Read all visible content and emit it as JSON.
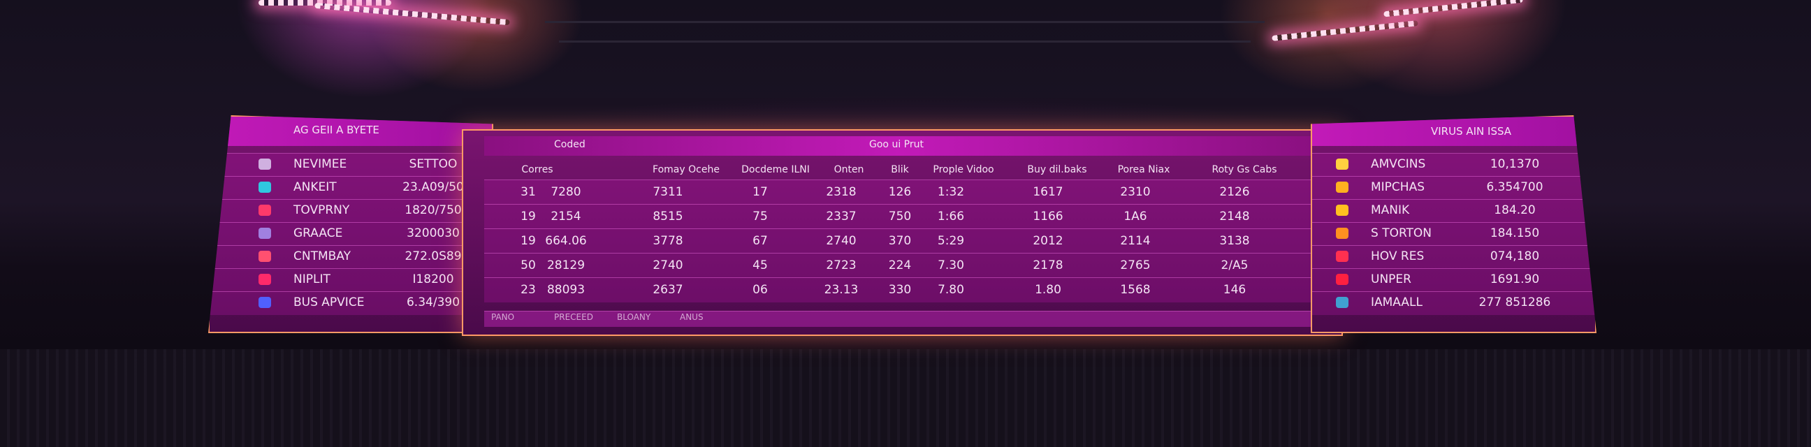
{
  "left_panel": {
    "title": "AG GEII A BYETE",
    "rows": [
      [
        "NEVIMEE",
        "SETTOO"
      ],
      [
        "ANKEIT",
        "23.A09/50"
      ],
      [
        "TOVPRNY",
        "1820/750"
      ],
      [
        "GRAACE",
        "3200030"
      ],
      [
        "CNTMBAY",
        "272.0S89"
      ],
      [
        "NIPLIT",
        "I18200"
      ],
      [
        "BUS APVICE",
        "6.34/390"
      ]
    ]
  },
  "center_panel": {
    "header_left": "Coded",
    "header_center": "Goo ui Prut",
    "columns": [
      "Corres",
      "Fomay Ocehe",
      "Docdeme ILNI",
      "Onten",
      "Blik",
      "Prople Vidoo",
      "Buy dil.baks",
      "Porea Niax",
      "Roty Gs Cabs"
    ],
    "rows": [
      [
        "31",
        "7280",
        "7311",
        "17",
        "2318",
        "126",
        "1:32",
        "1617",
        "2310",
        "2126"
      ],
      [
        "19",
        "2154",
        "8515",
        "75",
        "2337",
        "750",
        "1:66",
        "1166",
        "1A6",
        "2148"
      ],
      [
        "19",
        "664.06",
        "3778",
        "67",
        "2740",
        "370",
        "5:29",
        "2012",
        "2114",
        "3138"
      ],
      [
        "50",
        "28129",
        "2740",
        "45",
        "2723",
        "224",
        "7.30",
        "2178",
        "2765",
        "2/A5"
      ],
      [
        "23",
        "88093",
        "2637",
        "06",
        "23.13",
        "330",
        "7.80",
        "1.80",
        "1568",
        "146"
      ]
    ],
    "footer": [
      "PANO",
      "PRECEED",
      "BLOANY",
      "ANUS"
    ]
  },
  "right_panel": {
    "title": "VIRUS AIN ISSA",
    "rows": [
      [
        "AMVCINS",
        "10,1370"
      ],
      [
        "MIPCHAS",
        "6.354700"
      ],
      [
        "MANIK",
        "184.20"
      ],
      [
        "S TORTON",
        "184.150"
      ],
      [
        "HOV RES",
        "074,180"
      ],
      [
        "UNPER",
        "1691.90"
      ],
      [
        "IAMAALL",
        "277 851286"
      ]
    ]
  }
}
